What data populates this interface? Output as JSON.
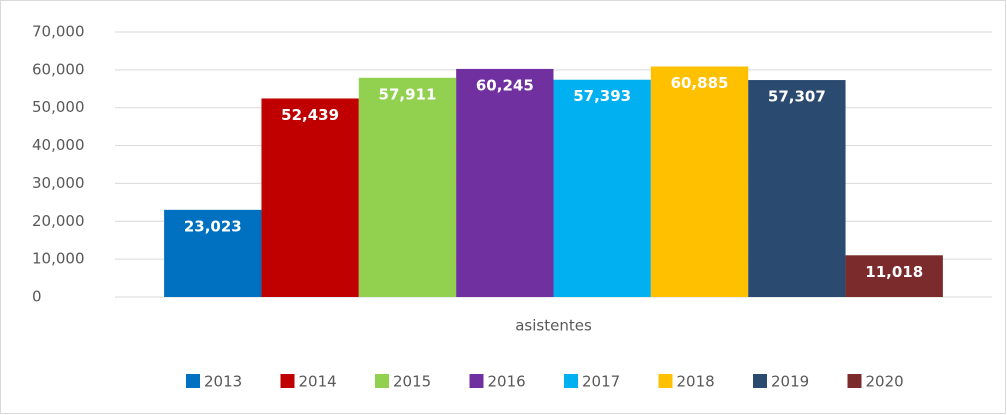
{
  "chart_data": {
    "type": "bar",
    "categories": [
      "asistentes"
    ],
    "series": [
      {
        "name": "2013",
        "color": "#0070c0",
        "values": [
          23023
        ],
        "value_labels": [
          "23,023"
        ]
      },
      {
        "name": "2014",
        "color": "#c00000",
        "values": [
          52439
        ],
        "value_labels": [
          "52,439"
        ]
      },
      {
        "name": "2015",
        "color": "#92d050",
        "values": [
          57911
        ],
        "value_labels": [
          "57,911"
        ]
      },
      {
        "name": "2016",
        "color": "#7030a0",
        "values": [
          60245
        ],
        "value_labels": [
          "60,245"
        ]
      },
      {
        "name": "2017",
        "color": "#00b0f0",
        "values": [
          57393
        ],
        "value_labels": [
          "57,393"
        ]
      },
      {
        "name": "2018",
        "color": "#ffc000",
        "values": [
          60885
        ],
        "value_labels": [
          "60,885"
        ]
      },
      {
        "name": "2019",
        "color": "#2b4a6f",
        "values": [
          57307
        ],
        "value_labels": [
          "57,307"
        ]
      },
      {
        "name": "2020",
        "color": "#7b2b2b",
        "values": [
          11018
        ],
        "value_labels": [
          "11,018"
        ]
      }
    ],
    "ylim": [
      0,
      70000
    ],
    "yticks": [
      0,
      {
        "value": 10000,
        "label": "10,000"
      },
      {
        "value": 20000,
        "label": "20,000"
      },
      {
        "value": 30000,
        "label": "30,000"
      },
      {
        "value": 40000,
        "label": "40,000"
      },
      {
        "value": 50000,
        "label": "50,000"
      },
      {
        "value": 60000,
        "label": "60,000"
      },
      {
        "value": 70000,
        "label": "70,000"
      }
    ],
    "grid": true,
    "legend": "bottom"
  }
}
